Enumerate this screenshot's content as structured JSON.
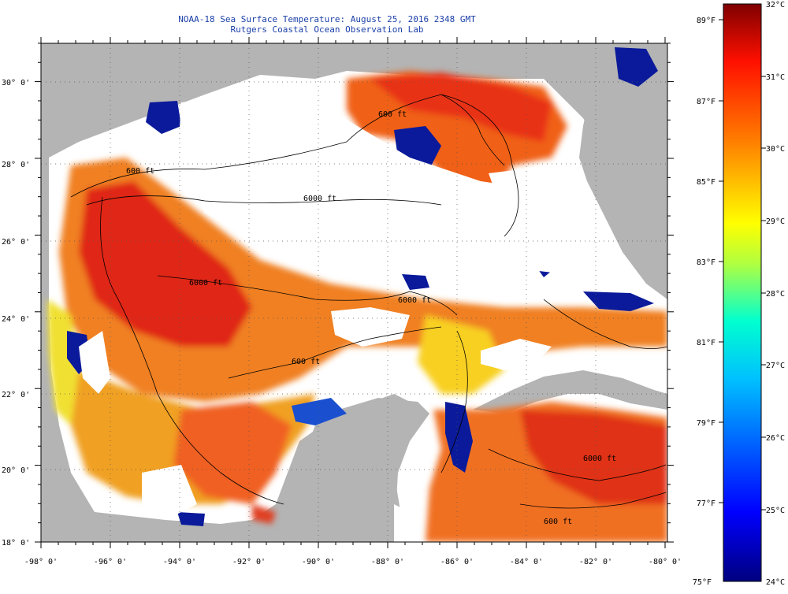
{
  "header": {
    "title_line1": "NOAA-18 Sea Surface Temperature:  August 25, 2016 2348 GMT",
    "title_line2": "Rutgers Coastal Ocean Observation Lab"
  },
  "map": {
    "lon_ticks": [
      "-98° 0'",
      "-96° 0'",
      "-94° 0'",
      "-92° 0'",
      "-90° 0'",
      "-88° 0'",
      "-86° 0'",
      "-84° 0'",
      "-82° 0'",
      "-80° 0'"
    ],
    "lat_ticks": [
      "30° 0'",
      "28° 0'",
      "26° 0'",
      "24° 0'",
      "22° 0'",
      "20° 0'",
      "18° 0'"
    ],
    "extent": {
      "lon_min": -98,
      "lon_max": -80,
      "lat_min": 18,
      "lat_max": 31
    },
    "contour_labels": [
      "600 ft",
      "600 ft",
      "6000 ft",
      "6000 ft",
      "6000 ft",
      "6000 ft",
      "600 ft",
      "600 ft"
    ],
    "colors": {
      "land": "#b4b4b4",
      "cloud": "#ffffff",
      "warm": "#e83018",
      "cool": "#0a1a9a"
    }
  },
  "colorbar": {
    "celsius": [
      "32°C",
      "31°C",
      "30°C",
      "29°C",
      "28°C",
      "27°C",
      "26°C",
      "25°C",
      "24°C"
    ],
    "fahrenheit": [
      "89°F",
      "87°F",
      "85°F",
      "83°F",
      "81°F",
      "79°F",
      "77°F",
      "75°F"
    ],
    "range_c": [
      24,
      32
    ],
    "stops": [
      "#00007f",
      "#0000ff",
      "#0080ff",
      "#00ffff",
      "#80ff80",
      "#ffff00",
      "#ff8000",
      "#ff0000",
      "#7f0000"
    ]
  }
}
